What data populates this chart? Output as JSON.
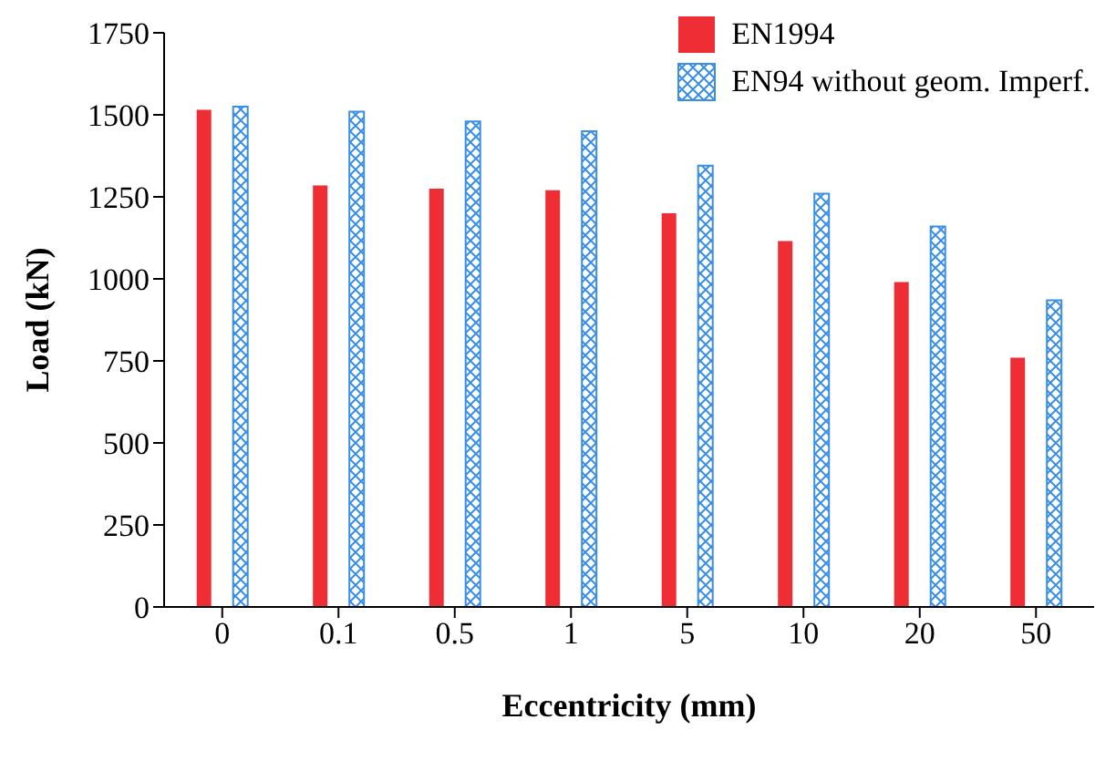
{
  "chart_data": {
    "type": "bar",
    "xlabel": "Eccentricity (mm)",
    "ylabel": "Load (kN)",
    "categories": [
      "0",
      "0.1",
      "0.5",
      "1",
      "5",
      "10",
      "20",
      "50"
    ],
    "series": [
      {
        "name": "EN1994",
        "color": "#ee2d35",
        "values": [
          1515,
          1285,
          1275,
          1270,
          1200,
          1115,
          990,
          760
        ]
      },
      {
        "name": "EN94 without geom. Imperf.",
        "color": "#3a8ee6",
        "values": [
          1525,
          1510,
          1480,
          1450,
          1345,
          1260,
          1160,
          935
        ]
      }
    ],
    "ylim": [
      0,
      1750
    ],
    "yticks": [
      0,
      250,
      500,
      750,
      1000,
      1250,
      1500,
      1750
    ],
    "grid": false,
    "legend": "top right"
  }
}
